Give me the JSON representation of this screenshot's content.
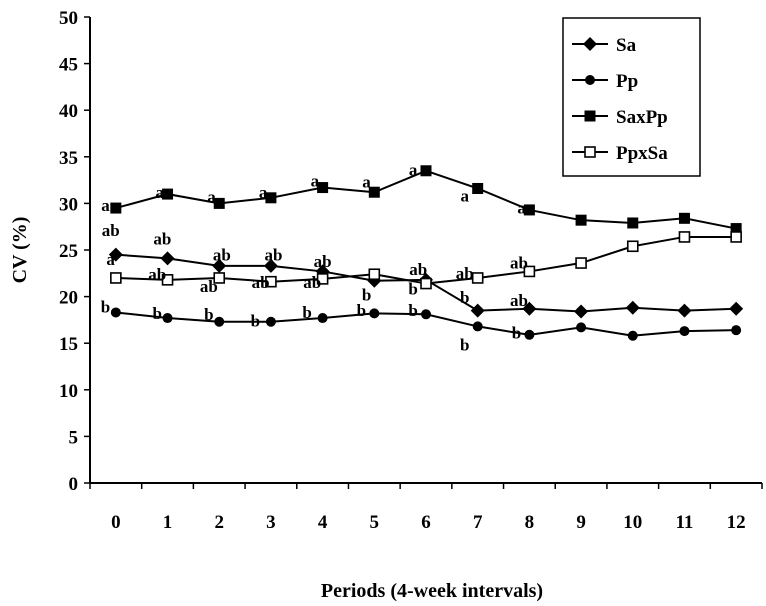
{
  "chart_data": {
    "type": "line",
    "x": [
      0,
      1,
      2,
      3,
      4,
      5,
      6,
      7,
      8,
      9,
      10,
      11,
      12
    ],
    "xlabel": "Periods (4-week intervals)",
    "ylabel": "CV (%)",
    "ylim": [
      0,
      50
    ],
    "yticks": [
      0,
      5,
      10,
      15,
      20,
      25,
      30,
      35,
      40,
      45,
      50
    ],
    "grid": false,
    "legend": "top-right",
    "series": [
      {
        "name": "Sa",
        "marker": "diamond-filled",
        "values": [
          24.5,
          24.1,
          23.3,
          23.3,
          22.7,
          21.7,
          21.8,
          18.5,
          18.7,
          18.4,
          18.8,
          18.5,
          18.7
        ]
      },
      {
        "name": "Pp",
        "marker": "circle-filled",
        "values": [
          18.3,
          17.7,
          17.3,
          17.3,
          17.7,
          18.2,
          18.1,
          16.8,
          15.9,
          16.7,
          15.8,
          16.3,
          16.4
        ]
      },
      {
        "name": "SaxPp",
        "marker": "square-filled",
        "values": [
          29.5,
          31.0,
          30.0,
          30.6,
          31.7,
          31.2,
          33.5,
          31.6,
          29.3,
          28.2,
          27.9,
          28.4,
          27.3
        ]
      },
      {
        "name": "PpxSa",
        "marker": "square-open",
        "values": [
          22.0,
          21.8,
          22.0,
          21.6,
          21.9,
          22.4,
          21.4,
          22.0,
          22.7,
          23.6,
          25.4,
          26.4,
          26.4
        ]
      }
    ],
    "annotations": [
      {
        "text": "a",
        "x": -0.2,
        "y": 29.2
      },
      {
        "text": "a",
        "x": 0.85,
        "y": 30.6
      },
      {
        "text": "a",
        "x": 1.85,
        "y": 30.1
      },
      {
        "text": "a",
        "x": 2.85,
        "y": 30.6
      },
      {
        "text": "a",
        "x": 3.85,
        "y": 31.8
      },
      {
        "text": "a",
        "x": 4.85,
        "y": 31.7
      },
      {
        "text": "a",
        "x": 5.75,
        "y": 33.0
      },
      {
        "text": "a",
        "x": 6.75,
        "y": 30.2
      },
      {
        "text": "a",
        "x": 7.85,
        "y": 28.9
      },
      {
        "text": "ab",
        "x": -0.1,
        "y": 26.5
      },
      {
        "text": "ab",
        "x": 0.9,
        "y": 25.6
      },
      {
        "text": "ab",
        "x": 2.05,
        "y": 23.9
      },
      {
        "text": "ab",
        "x": 3.05,
        "y": 23.9
      },
      {
        "text": "ab",
        "x": 4.0,
        "y": 23.2
      },
      {
        "text": "a",
        "x": -0.1,
        "y": 23.4
      },
      {
        "text": "ab",
        "x": 0.8,
        "y": 21.8
      },
      {
        "text": "ab",
        "x": 1.8,
        "y": 20.5
      },
      {
        "text": "ab",
        "x": 2.8,
        "y": 20.9
      },
      {
        "text": "ab",
        "x": 3.8,
        "y": 20.9
      },
      {
        "text": "b",
        "x": 4.85,
        "y": 19.6
      },
      {
        "text": "ab",
        "x": 5.85,
        "y": 22.3
      },
      {
        "text": "b",
        "x": 5.75,
        "y": 20.2
      },
      {
        "text": "ab",
        "x": 6.75,
        "y": 21.9
      },
      {
        "text": "ab",
        "x": 7.8,
        "y": 23.0
      },
      {
        "text": "b",
        "x": 6.75,
        "y": 19.3
      },
      {
        "text": "ab",
        "x": 7.8,
        "y": 19.0
      },
      {
        "text": "b",
        "x": -0.2,
        "y": 18.3
      },
      {
        "text": "b",
        "x": 0.8,
        "y": 17.6
      },
      {
        "text": "b",
        "x": 1.8,
        "y": 17.5
      },
      {
        "text": "b",
        "x": 2.7,
        "y": 16.8
      },
      {
        "text": "b",
        "x": 3.7,
        "y": 17.7
      },
      {
        "text": "b",
        "x": 4.75,
        "y": 17.9
      },
      {
        "text": "b",
        "x": 5.75,
        "y": 17.9
      },
      {
        "text": "b",
        "x": 6.75,
        "y": 14.2
      },
      {
        "text": "b",
        "x": 7.75,
        "y": 15.5
      }
    ]
  }
}
